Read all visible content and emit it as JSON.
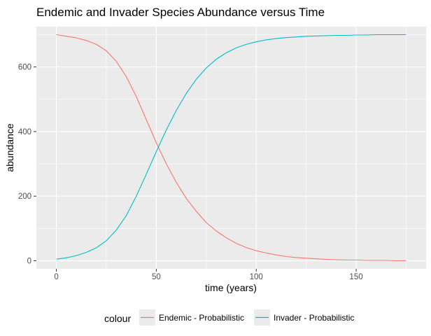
{
  "chart_data": {
    "type": "line",
    "title": "Endemic and Invader Species Abundance versus Time",
    "xlabel": "time (years)",
    "ylabel": "abundance",
    "xlim": [
      -10,
      185
    ],
    "ylim": [
      -25,
      725
    ],
    "x_ticks": [
      0,
      50,
      100,
      150
    ],
    "y_ticks": [
      0,
      200,
      400,
      600
    ],
    "grid": true,
    "legend_title": "colour",
    "legend_position": "bottom",
    "series": [
      {
        "name": "Endemic - Probabilistic",
        "color": "#F8766D",
        "x": [
          0,
          5,
          10,
          15,
          20,
          25,
          30,
          35,
          40,
          45,
          50,
          55,
          60,
          65,
          70,
          75,
          80,
          85,
          90,
          95,
          100,
          105,
          110,
          115,
          120,
          125,
          130,
          135,
          140,
          145,
          150,
          155,
          160,
          165,
          170,
          175
        ],
        "values": [
          700,
          695,
          690,
          682,
          670,
          650,
          617,
          570,
          508,
          437,
          365,
          300,
          243,
          193,
          153,
          118,
          92,
          71,
          54,
          41,
          31,
          24,
          18,
          13,
          10,
          8,
          6,
          4,
          3,
          2,
          2,
          1,
          1,
          1,
          0,
          0
        ]
      },
      {
        "name": "Invader - Probabilistic",
        "color": "#00BFC4",
        "x": [
          0,
          5,
          10,
          15,
          20,
          25,
          30,
          35,
          40,
          45,
          50,
          55,
          60,
          65,
          70,
          75,
          80,
          85,
          90,
          95,
          100,
          105,
          110,
          115,
          120,
          125,
          130,
          135,
          140,
          145,
          150,
          155,
          160,
          165,
          170,
          175
        ],
        "values": [
          5,
          9,
          16,
          26,
          40,
          62,
          95,
          140,
          200,
          268,
          338,
          405,
          465,
          518,
          562,
          597,
          624,
          644,
          659,
          670,
          678,
          684,
          688,
          691,
          693,
          695,
          696,
          697,
          698,
          698,
          699,
          699,
          700,
          700,
          700,
          700
        ]
      }
    ]
  }
}
